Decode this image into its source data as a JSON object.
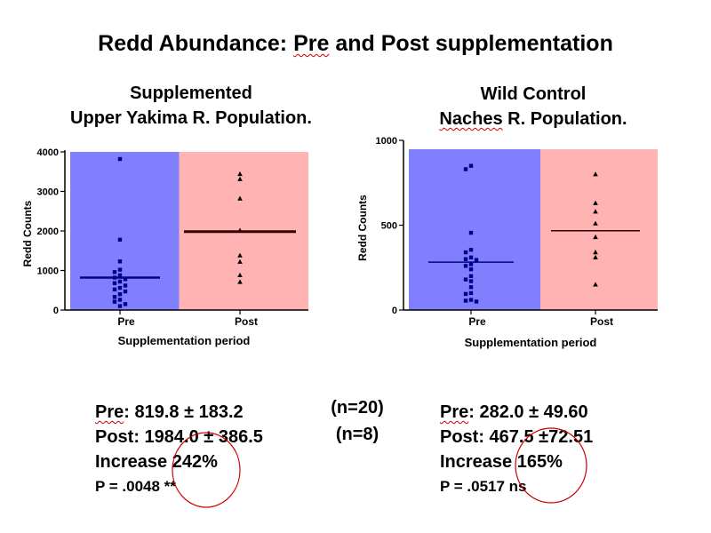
{
  "slide": {
    "title_prefix": "Redd Abundance:  ",
    "title_underlined": "Pre",
    "title_suffix": " and Post supplementation",
    "left_heading": {
      "line1": "Supplemented",
      "line2": "Upper Yakima R. Population."
    },
    "right_heading": {
      "line1": "Wild Control",
      "line2_underlined": "Naches",
      "line2_rest": " R. Population."
    },
    "left_stats": {
      "pre_label": "Pre",
      "pre_value": ": 819.8 ± 183.2",
      "post": "Post: 1984.0 ± 386.5",
      "increase": "Increase 242%",
      "p_value": "P = .0048   **"
    },
    "right_stats": {
      "pre_label": "Pre",
      "pre_value": ": 282.0 ± 49.60",
      "post": "Post: 467.5 ±72.51",
      "increase": "Increase 165%",
      "p_value": "P = .0517  ns"
    },
    "n_pre": "(n=20)",
    "n_post": "(n=8)",
    "colors": {
      "pre_bg": "#8080ff",
      "post_bg": "#ffb3b3",
      "points": "#00008b",
      "circle": "#cc0000"
    }
  },
  "chart_data": [
    {
      "type": "scatter",
      "title": "Supplemented Upper Yakima R. Population.",
      "xlabel": "Supplementation period",
      "ylabel": "Redd Counts",
      "categories": [
        "Pre",
        "Post"
      ],
      "ylim": [
        0,
        4000
      ],
      "yticks": [
        0,
        1000,
        2000,
        3000,
        4000
      ],
      "series": [
        {
          "category": "Pre",
          "marker": "square",
          "mean": 819.8,
          "values": [
            3820,
            1780,
            1230,
            1020,
            960,
            880,
            820,
            780,
            720,
            680,
            620,
            560,
            520,
            470,
            400,
            330,
            260,
            210,
            150,
            100
          ]
        },
        {
          "category": "Post",
          "marker": "triangle",
          "mean": 1984.0,
          "values": [
            3440,
            3310,
            2820,
            2010,
            1380,
            1220,
            880,
            710
          ]
        }
      ]
    },
    {
      "type": "scatter",
      "title": "Wild Control Naches R. Population.",
      "xlabel": "Supplementation period",
      "ylabel": "Redd Counts",
      "categories": [
        "Pre",
        "Post"
      ],
      "ylim": [
        0,
        1000
      ],
      "yticks": [
        0,
        500,
        1000
      ],
      "series": [
        {
          "category": "Pre",
          "marker": "square",
          "mean": 282.0,
          "values": [
            850,
            830,
            455,
            355,
            340,
            310,
            300,
            295,
            270,
            260,
            240,
            200,
            180,
            170,
            135,
            100,
            95,
            60,
            55,
            50
          ]
        },
        {
          "category": "Post",
          "marker": "triangle",
          "mean": 467.5,
          "values": [
            800,
            630,
            580,
            510,
            430,
            340,
            310,
            150
          ]
        }
      ]
    }
  ]
}
